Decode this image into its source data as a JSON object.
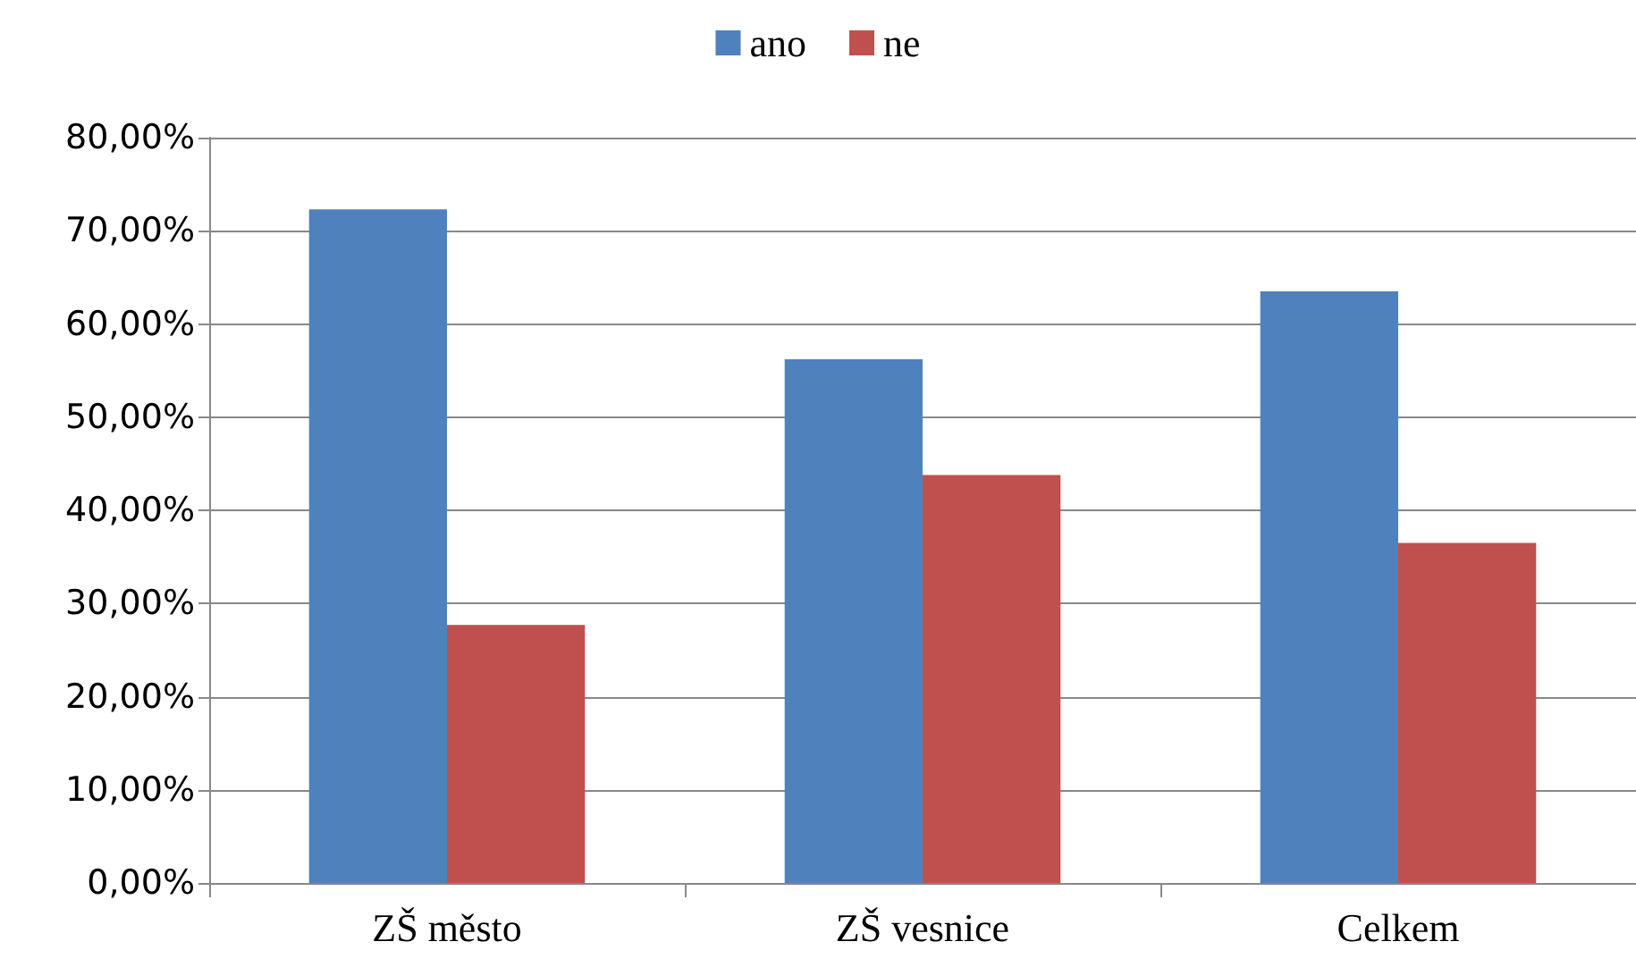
{
  "chart_data": {
    "type": "bar",
    "categories": [
      "ZŠ město",
      "ZŠ vesnice",
      "Celkem"
    ],
    "series": [
      {
        "name": "ano",
        "color": "#4f81bd",
        "values": [
          72.3,
          56.2,
          63.5
        ]
      },
      {
        "name": "ne",
        "color": "#c0504d",
        "values": [
          27.7,
          43.8,
          36.5
        ]
      }
    ],
    "ylim": [
      0,
      80
    ],
    "yticks": [
      {
        "value": 0,
        "label": "0,00%"
      },
      {
        "value": 10,
        "label": "10,00%"
      },
      {
        "value": 20,
        "label": "20,00%"
      },
      {
        "value": 30,
        "label": "30,00%"
      },
      {
        "value": 40,
        "label": "40,00%"
      },
      {
        "value": 50,
        "label": "50,00%"
      },
      {
        "value": 60,
        "label": "60,00%"
      },
      {
        "value": 70,
        "label": "70,00%"
      },
      {
        "value": 80,
        "label": "80,00%"
      }
    ],
    "grid": "y",
    "legend": "top"
  }
}
